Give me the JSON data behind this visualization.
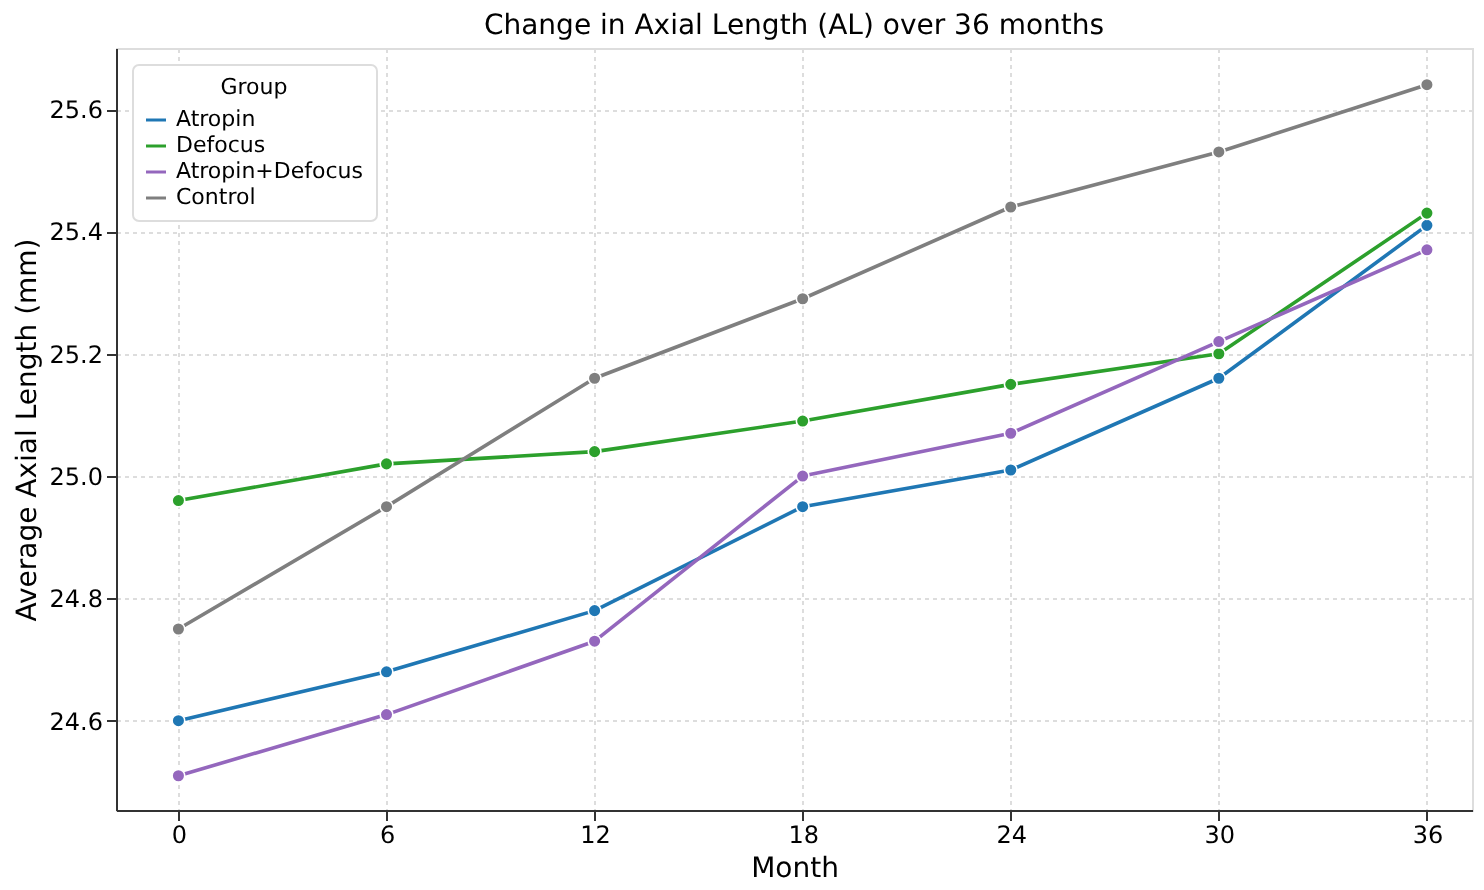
{
  "chart_data": {
    "type": "line",
    "title": "Change in Axial Length (AL) over 36 months",
    "xlabel": "Month",
    "ylabel": "Average Axial Length (mm)",
    "legend_title": "Group",
    "x": [
      0,
      6,
      12,
      18,
      24,
      30,
      36
    ],
    "series": [
      {
        "name": "Atropin",
        "color": "#1f77b4",
        "values": [
          24.6,
          24.68,
          24.78,
          24.95,
          25.01,
          25.16,
          25.41
        ]
      },
      {
        "name": "Defocus",
        "color": "#2ca02c",
        "values": [
          24.96,
          25.02,
          25.04,
          25.09,
          25.15,
          25.2,
          25.43
        ]
      },
      {
        "name": "Atropin+Defocus",
        "color": "#9467bd",
        "values": [
          24.51,
          24.61,
          24.73,
          25.0,
          25.07,
          25.22,
          25.37
        ]
      },
      {
        "name": "Control",
        "color": "#7f7f7f",
        "values": [
          24.75,
          24.95,
          25.16,
          25.29,
          25.44,
          25.53,
          25.64
        ]
      }
    ],
    "xlim": [
      -1.8,
      37.3
    ],
    "xticks": [
      0,
      6,
      12,
      18,
      24,
      30,
      36
    ],
    "ylim": [
      24.454,
      25.7
    ],
    "yticks": [
      {
        "value": 24.6,
        "label": "24.6"
      },
      {
        "value": 24.8,
        "label": "24.8"
      },
      {
        "value": 25.0,
        "label": "25.0"
      },
      {
        "value": 25.2,
        "label": "25.2"
      },
      {
        "value": 25.4,
        "label": "25.4"
      },
      {
        "value": 25.6,
        "label": "25.6"
      }
    ],
    "grid": true,
    "legend": "top left",
    "marker": "circle",
    "line_style": "solid"
  }
}
